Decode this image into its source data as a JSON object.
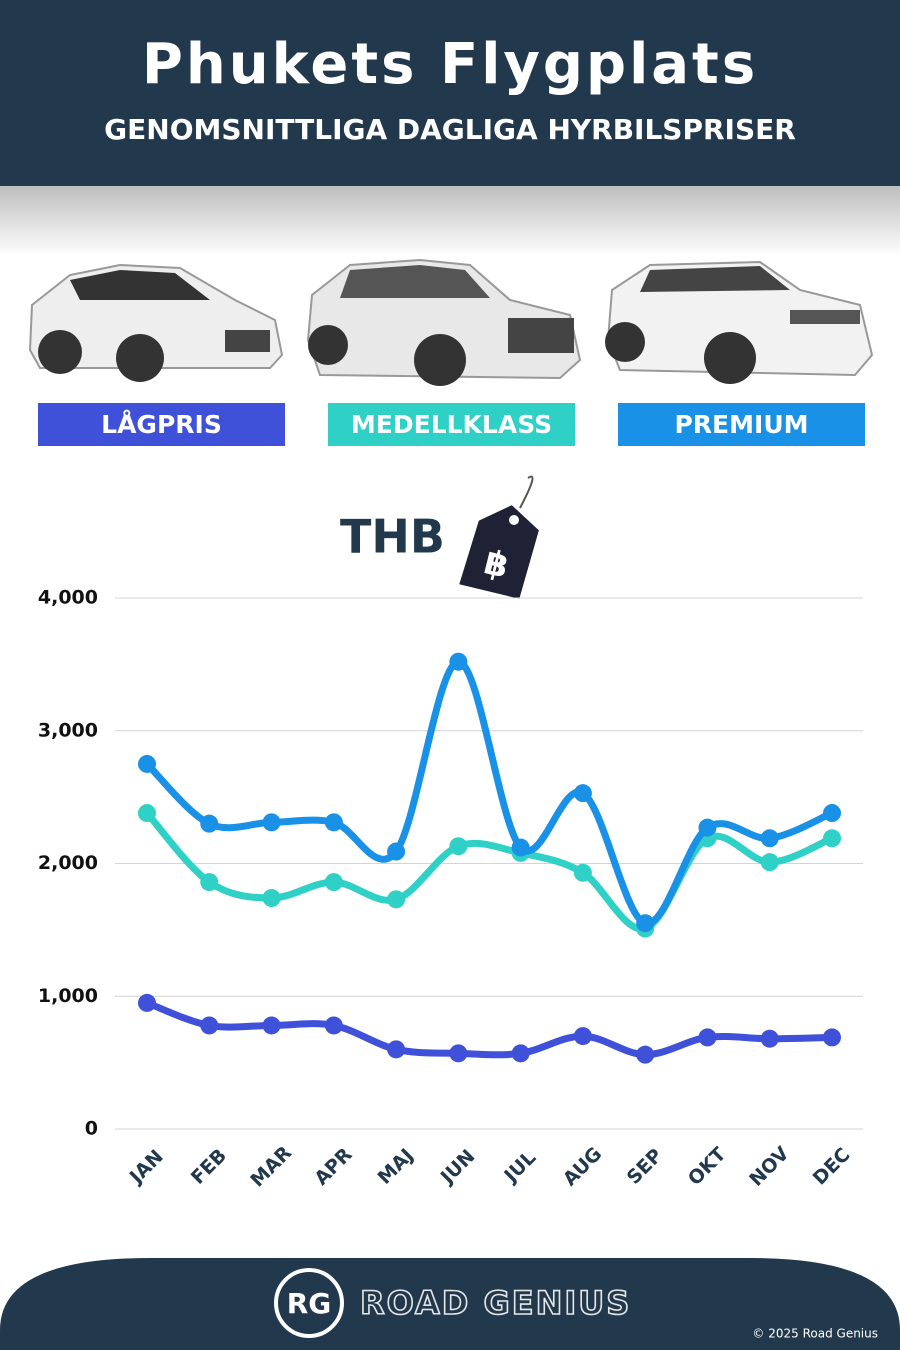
{
  "chart_data": {
    "type": "line",
    "title": "Phukets Flygplats",
    "subtitle": "GENOMSNITTLIGA DAGLIGA HYRBILSPRISER",
    "categories": [
      "JAN",
      "FEB",
      "MAR",
      "APR",
      "MAJ",
      "JUN",
      "JUL",
      "AUG",
      "SEP",
      "OKT",
      "NOV",
      "DEC"
    ],
    "series": [
      {
        "name": "LÅGPRIS",
        "color": "#3f51d9",
        "values": [
          950,
          780,
          780,
          780,
          600,
          570,
          570,
          700,
          560,
          690,
          680,
          690
        ]
      },
      {
        "name": "MEDELLKLASS",
        "color": "#2fd0c6",
        "values": [
          2380,
          1860,
          1740,
          1860,
          1730,
          2130,
          2080,
          1930,
          1510,
          2190,
          2010,
          2190
        ]
      },
      {
        "name": "PREMIUM",
        "color": "#1991e6",
        "values": [
          2750,
          2300,
          2310,
          2310,
          2090,
          3520,
          2120,
          2530,
          1550,
          2270,
          2190,
          2380
        ]
      }
    ],
    "ylim": [
      0,
      4000
    ],
    "yticks": [
      0,
      {
        "value": 1000,
        "label": "1,000"
      },
      {
        "value": 2000,
        "label": "2,000"
      },
      {
        "value": 3000,
        "label": "3,000"
      },
      {
        "value": 4000,
        "label": "4,000"
      }
    ],
    "grid": true,
    "unit_label": "THB",
    "unit_symbol": "฿"
  },
  "footer": {
    "logo": "RG",
    "brand": "ROAD GENIUS",
    "copyright": "© 2025 Road Genius"
  }
}
